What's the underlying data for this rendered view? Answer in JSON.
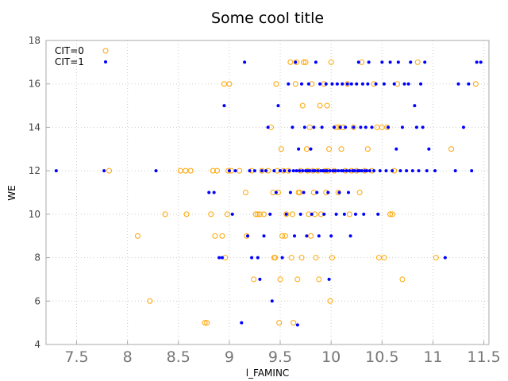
{
  "chart_data": {
    "type": "scatter",
    "title": "Some cool title",
    "xlabel": "l_FAMINC",
    "ylabel": "WE",
    "xlim": [
      7.2,
      11.55
    ],
    "ylim": [
      4,
      18
    ],
    "xticks": [
      "7.5",
      "8",
      "8.5",
      "9",
      "9.5",
      "10",
      "10.5",
      "11",
      "11.5"
    ],
    "yticks": [
      "4",
      "6",
      "8",
      "10",
      "12",
      "14",
      "16",
      "18"
    ],
    "grid": true,
    "legend_position": "top-left",
    "series": [
      {
        "name": "CIT=0",
        "marker": "open-circle",
        "color": "#ffa500",
        "points": [
          [
            7.82,
            12
          ],
          [
            8.1,
            9
          ],
          [
            8.22,
            6
          ],
          [
            8.37,
            10
          ],
          [
            8.52,
            12
          ],
          [
            8.57,
            12
          ],
          [
            8.58,
            10
          ],
          [
            8.62,
            12
          ],
          [
            8.76,
            5
          ],
          [
            8.78,
            5
          ],
          [
            8.82,
            10
          ],
          [
            8.84,
            12
          ],
          [
            8.86,
            9
          ],
          [
            8.88,
            12
          ],
          [
            8.93,
            9
          ],
          [
            8.95,
            16
          ],
          [
            8.96,
            8
          ],
          [
            8.98,
            10
          ],
          [
            8.99,
            12
          ],
          [
            9.0,
            16
          ],
          [
            9.02,
            12
          ],
          [
            9.1,
            12
          ],
          [
            9.16,
            11
          ],
          [
            9.17,
            9
          ],
          [
            9.22,
            12
          ],
          [
            9.24,
            7
          ],
          [
            9.26,
            10
          ],
          [
            9.28,
            10
          ],
          [
            9.3,
            10
          ],
          [
            9.32,
            12
          ],
          [
            9.34,
            10
          ],
          [
            9.38,
            12
          ],
          [
            9.41,
            14
          ],
          [
            9.43,
            11
          ],
          [
            9.44,
            8
          ],
          [
            9.45,
            8
          ],
          [
            9.46,
            16
          ],
          [
            9.47,
            12
          ],
          [
            9.48,
            11
          ],
          [
            9.49,
            5
          ],
          [
            9.5,
            7
          ],
          [
            9.51,
            13
          ],
          [
            9.52,
            9
          ],
          [
            9.53,
            12
          ],
          [
            9.55,
            9
          ],
          [
            9.56,
            10
          ],
          [
            9.58,
            12
          ],
          [
            9.6,
            17
          ],
          [
            9.61,
            8
          ],
          [
            9.62,
            10
          ],
          [
            9.63,
            5
          ],
          [
            9.65,
            16
          ],
          [
            9.66,
            17
          ],
          [
            9.67,
            7
          ],
          [
            9.68,
            11
          ],
          [
            9.69,
            11
          ],
          [
            9.7,
            12
          ],
          [
            9.71,
            8
          ],
          [
            9.72,
            15
          ],
          [
            9.73,
            17
          ],
          [
            9.75,
            17
          ],
          [
            9.76,
            13
          ],
          [
            9.77,
            12
          ],
          [
            9.78,
            10
          ],
          [
            9.79,
            14
          ],
          [
            9.8,
            9
          ],
          [
            9.81,
            16
          ],
          [
            9.82,
            12
          ],
          [
            9.83,
            11
          ],
          [
            9.84,
            10
          ],
          [
            9.85,
            8
          ],
          [
            9.87,
            12
          ],
          [
            9.88,
            7
          ],
          [
            9.89,
            15
          ],
          [
            9.9,
            10
          ],
          [
            9.93,
            16
          ],
          [
            9.94,
            12
          ],
          [
            9.95,
            11
          ],
          [
            9.96,
            15
          ],
          [
            9.97,
            12
          ],
          [
            9.98,
            13
          ],
          [
            9.99,
            6
          ],
          [
            10.0,
            17
          ],
          [
            10.01,
            8
          ],
          [
            10.03,
            12
          ],
          [
            10.05,
            14
          ],
          [
            10.07,
            11
          ],
          [
            10.08,
            14
          ],
          [
            10.1,
            13
          ],
          [
            10.12,
            14
          ],
          [
            10.14,
            12
          ],
          [
            10.16,
            16
          ],
          [
            10.18,
            10
          ],
          [
            10.2,
            12
          ],
          [
            10.22,
            14
          ],
          [
            10.25,
            12
          ],
          [
            10.28,
            11
          ],
          [
            10.3,
            17
          ],
          [
            10.33,
            12
          ],
          [
            10.36,
            13
          ],
          [
            10.4,
            12
          ],
          [
            10.42,
            16
          ],
          [
            10.45,
            14
          ],
          [
            10.47,
            8
          ],
          [
            10.5,
            14
          ],
          [
            10.52,
            8
          ],
          [
            10.55,
            14
          ],
          [
            10.58,
            10
          ],
          [
            10.6,
            10
          ],
          [
            10.62,
            12
          ],
          [
            10.65,
            16
          ],
          [
            10.7,
            7
          ],
          [
            10.85,
            17
          ],
          [
            11.03,
            8
          ],
          [
            11.18,
            13
          ],
          [
            11.42,
            16
          ]
        ]
      },
      {
        "name": "CIT=1",
        "marker": "dot",
        "color": "#0000ff",
        "points": [
          [
            7.3,
            12
          ],
          [
            7.77,
            12
          ],
          [
            8.28,
            12
          ],
          [
            8.8,
            11
          ],
          [
            8.85,
            11
          ],
          [
            8.9,
            8
          ],
          [
            8.93,
            8
          ],
          [
            8.95,
            15
          ],
          [
            9.0,
            12
          ],
          [
            9.03,
            10
          ],
          [
            9.06,
            12
          ],
          [
            9.12,
            5
          ],
          [
            9.15,
            17
          ],
          [
            9.18,
            9
          ],
          [
            9.2,
            12
          ],
          [
            9.22,
            8
          ],
          [
            9.25,
            12
          ],
          [
            9.28,
            8
          ],
          [
            9.3,
            7
          ],
          [
            9.32,
            12
          ],
          [
            9.34,
            9
          ],
          [
            9.36,
            12
          ],
          [
            9.38,
            14
          ],
          [
            9.4,
            10
          ],
          [
            9.42,
            6
          ],
          [
            9.44,
            12
          ],
          [
            9.46,
            11
          ],
          [
            9.48,
            15
          ],
          [
            9.5,
            12
          ],
          [
            9.52,
            8
          ],
          [
            9.54,
            12
          ],
          [
            9.56,
            10
          ],
          [
            9.58,
            16
          ],
          [
            9.59,
            12
          ],
          [
            9.6,
            11
          ],
          [
            9.62,
            14
          ],
          [
            9.63,
            12
          ],
          [
            9.64,
            9
          ],
          [
            9.65,
            17
          ],
          [
            9.66,
            12
          ],
          [
            9.67,
            4.9
          ],
          [
            9.68,
            13
          ],
          [
            9.69,
            12
          ],
          [
            9.7,
            10
          ],
          [
            9.71,
            16
          ],
          [
            9.72,
            12
          ],
          [
            9.73,
            11
          ],
          [
            9.74,
            14
          ],
          [
            9.75,
            12
          ],
          [
            9.76,
            9
          ],
          [
            9.77,
            12
          ],
          [
            9.78,
            16
          ],
          [
            9.79,
            12
          ],
          [
            9.8,
            13
          ],
          [
            9.81,
            10
          ],
          [
            9.82,
            12
          ],
          [
            9.83,
            14
          ],
          [
            9.84,
            12
          ],
          [
            9.85,
            17
          ],
          [
            9.86,
            11
          ],
          [
            9.87,
            12
          ],
          [
            9.88,
            9
          ],
          [
            9.89,
            16
          ],
          [
            9.9,
            12
          ],
          [
            9.91,
            14
          ],
          [
            9.92,
            12
          ],
          [
            9.93,
            10
          ],
          [
            9.94,
            12
          ],
          [
            9.95,
            16
          ],
          [
            9.96,
            12
          ],
          [
            9.97,
            11
          ],
          [
            9.98,
            7
          ],
          [
            9.99,
            12
          ],
          [
            10.0,
            9
          ],
          [
            10.01,
            16
          ],
          [
            10.02,
            12
          ],
          [
            10.03,
            14
          ],
          [
            10.04,
            12
          ],
          [
            10.05,
            10
          ],
          [
            10.06,
            16
          ],
          [
            10.07,
            12
          ],
          [
            10.08,
            11
          ],
          [
            10.09,
            14
          ],
          [
            10.1,
            12
          ],
          [
            10.11,
            16
          ],
          [
            10.12,
            12
          ],
          [
            10.13,
            10
          ],
          [
            10.14,
            14
          ],
          [
            10.15,
            12
          ],
          [
            10.16,
            16
          ],
          [
            10.17,
            11
          ],
          [
            10.18,
            12
          ],
          [
            10.19,
            9
          ],
          [
            10.2,
            16
          ],
          [
            10.21,
            12
          ],
          [
            10.22,
            14
          ],
          [
            10.23,
            12
          ],
          [
            10.24,
            10
          ],
          [
            10.25,
            16
          ],
          [
            10.26,
            12
          ],
          [
            10.27,
            17
          ],
          [
            10.28,
            12
          ],
          [
            10.29,
            14
          ],
          [
            10.3,
            12
          ],
          [
            10.31,
            16
          ],
          [
            10.32,
            10
          ],
          [
            10.33,
            12
          ],
          [
            10.34,
            14
          ],
          [
            10.35,
            12
          ],
          [
            10.36,
            16
          ],
          [
            10.37,
            17
          ],
          [
            10.38,
            12
          ],
          [
            10.4,
            14
          ],
          [
            10.42,
            12
          ],
          [
            10.44,
            16
          ],
          [
            10.46,
            10
          ],
          [
            10.48,
            12
          ],
          [
            10.5,
            17
          ],
          [
            10.52,
            16
          ],
          [
            10.54,
            12
          ],
          [
            10.56,
            14
          ],
          [
            10.58,
            17
          ],
          [
            10.6,
            12
          ],
          [
            10.62,
            16
          ],
          [
            10.64,
            13
          ],
          [
            10.66,
            17
          ],
          [
            10.68,
            12
          ],
          [
            10.7,
            14
          ],
          [
            10.72,
            16
          ],
          [
            10.74,
            12
          ],
          [
            10.76,
            16
          ],
          [
            10.78,
            17
          ],
          [
            10.8,
            12
          ],
          [
            10.82,
            15
          ],
          [
            10.84,
            14
          ],
          [
            10.86,
            12
          ],
          [
            10.88,
            16
          ],
          [
            10.9,
            14
          ],
          [
            10.92,
            17
          ],
          [
            10.94,
            12
          ],
          [
            10.96,
            13
          ],
          [
            11.02,
            12
          ],
          [
            11.12,
            8
          ],
          [
            11.22,
            12
          ],
          [
            11.25,
            16
          ],
          [
            11.3,
            14
          ],
          [
            11.35,
            16
          ],
          [
            11.38,
            12
          ],
          [
            11.43,
            17
          ],
          [
            11.47,
            17
          ]
        ]
      }
    ]
  }
}
